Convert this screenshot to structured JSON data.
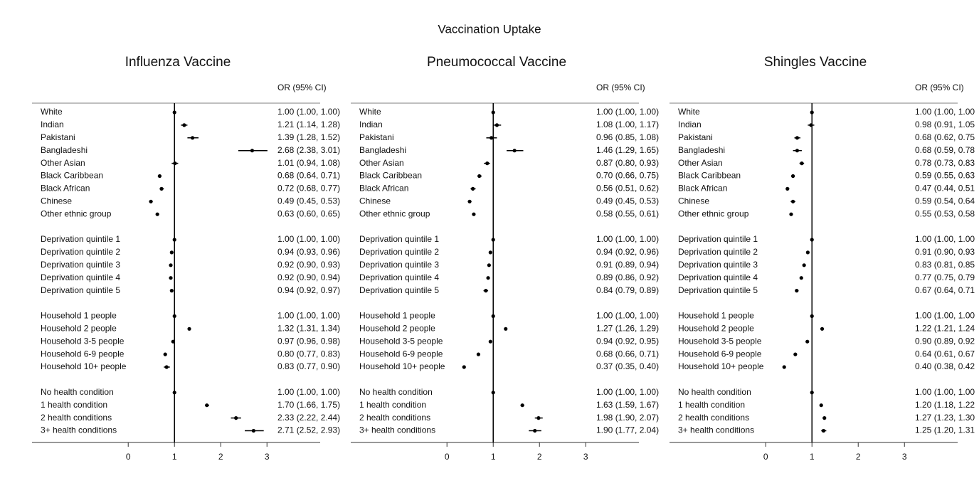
{
  "title": "Vaccination Uptake",
  "chart_data": [
    {
      "type": "forest",
      "title": "Influenza Vaccine",
      "column_header": "OR (95% CI)",
      "categories": [
        "White",
        "Indian",
        "Pakistani",
        "Bangladeshi",
        "Other Asian",
        "Black Caribbean",
        "Black African",
        "Chinese",
        "Other ethnic group",
        null,
        "Deprivation quintile 1",
        "Deprivation quintile 2",
        "Deprivation quintile 3",
        "Deprivation quintile 4",
        "Deprivation quintile 5",
        null,
        "Household 1 people",
        "Household 2 people",
        "Household 3-5 people",
        "Household 6-9 people",
        "Household 10+ people",
        null,
        "No health condition",
        "1 health condition",
        "2 health conditions",
        "3+ health conditions"
      ],
      "values": [
        1.0,
        1.21,
        1.39,
        2.68,
        1.01,
        0.68,
        0.72,
        0.49,
        0.63,
        null,
        1.0,
        0.94,
        0.92,
        0.92,
        0.94,
        null,
        1.0,
        1.32,
        0.97,
        0.8,
        0.83,
        null,
        1.0,
        1.7,
        2.33,
        2.71
      ],
      "lower": [
        1.0,
        1.14,
        1.28,
        2.38,
        0.94,
        0.64,
        0.68,
        0.45,
        0.6,
        null,
        1.0,
        0.93,
        0.9,
        0.9,
        0.92,
        null,
        1.0,
        1.31,
        0.96,
        0.77,
        0.77,
        null,
        1.0,
        1.66,
        2.22,
        2.52
      ],
      "upper": [
        1.0,
        1.28,
        1.52,
        3.01,
        1.08,
        0.71,
        0.77,
        0.53,
        0.65,
        null,
        1.0,
        0.96,
        0.93,
        0.94,
        0.97,
        null,
        1.0,
        1.34,
        0.98,
        0.83,
        0.9,
        null,
        1.0,
        1.75,
        2.44,
        2.93
      ],
      "value_labels": [
        "1.00 (1.00, 1.00)",
        "1.21 (1.14, 1.28)",
        "1.39 (1.28, 1.52)",
        "2.68 (2.38, 3.01)",
        "1.01 (0.94, 1.08)",
        "0.68 (0.64, 0.71)",
        "0.72 (0.68, 0.77)",
        "0.49 (0.45, 0.53)",
        "0.63 (0.60, 0.65)",
        null,
        "1.00 (1.00, 1.00)",
        "0.94 (0.93, 0.96)",
        "0.92 (0.90, 0.93)",
        "0.92 (0.90, 0.94)",
        "0.94 (0.92, 0.97)",
        null,
        "1.00 (1.00, 1.00)",
        "1.32 (1.31, 1.34)",
        "0.97 (0.96, 0.98)",
        "0.80 (0.77, 0.83)",
        "0.83 (0.77, 0.90)",
        null,
        "1.00 (1.00, 1.00)",
        "1.70 (1.66, 1.75)",
        "2.33 (2.22, 2.44)",
        "2.71 (2.52, 2.93)"
      ],
      "xlim": [
        -2.08,
        4.15
      ],
      "xticks": [
        0,
        1,
        2,
        3
      ],
      "refline": 1,
      "color": "#000000"
    },
    {
      "type": "forest",
      "title": "Pneumococcal Vaccine",
      "column_header": "OR (95% CI)",
      "categories": [
        "White",
        "Indian",
        "Pakistani",
        "Bangladeshi",
        "Other Asian",
        "Black Caribbean",
        "Black African",
        "Chinese",
        "Other ethnic group",
        null,
        "Deprivation quintile 1",
        "Deprivation quintile 2",
        "Deprivation quintile 3",
        "Deprivation quintile 4",
        "Deprivation quintile 5",
        null,
        "Household 1 people",
        "Household 2 people",
        "Household 3-5 people",
        "Household 6-9 people",
        "Household 10+ people",
        null,
        "No health condition",
        "1 health condition",
        "2 health conditions",
        "3+ health conditions"
      ],
      "values": [
        1.0,
        1.08,
        0.96,
        1.46,
        0.87,
        0.7,
        0.56,
        0.49,
        0.58,
        null,
        1.0,
        0.94,
        0.91,
        0.89,
        0.84,
        null,
        1.0,
        1.27,
        0.94,
        0.68,
        0.37,
        null,
        1.0,
        1.63,
        1.98,
        1.9
      ],
      "lower": [
        1.0,
        1.0,
        0.85,
        1.29,
        0.8,
        0.66,
        0.51,
        0.45,
        0.55,
        null,
        1.0,
        0.92,
        0.89,
        0.86,
        0.79,
        null,
        1.0,
        1.26,
        0.92,
        0.66,
        0.35,
        null,
        1.0,
        1.59,
        1.9,
        1.77
      ],
      "upper": [
        1.0,
        1.17,
        1.08,
        1.65,
        0.93,
        0.75,
        0.62,
        0.53,
        0.61,
        null,
        1.0,
        0.96,
        0.94,
        0.92,
        0.89,
        null,
        1.0,
        1.29,
        0.95,
        0.71,
        0.4,
        null,
        1.0,
        1.67,
        2.07,
        2.04
      ],
      "value_labels": [
        "1.00 (1.00, 1.00)",
        "1.08 (1.00, 1.17)",
        "0.96 (0.85, 1.08)",
        "1.46 (1.29, 1.65)",
        "0.87 (0.80, 0.93)",
        "0.70 (0.66, 0.75)",
        "0.56 (0.51, 0.62)",
        "0.49 (0.45, 0.53)",
        "0.58 (0.55, 0.61)",
        null,
        "1.00 (1.00, 1.00)",
        "0.94 (0.92, 0.96)",
        "0.91 (0.89, 0.94)",
        "0.89 (0.86, 0.92)",
        "0.84 (0.79, 0.89)",
        null,
        "1.00 (1.00, 1.00)",
        "1.27 (1.26, 1.29)",
        "0.94 (0.92, 0.95)",
        "0.68 (0.66, 0.71)",
        "0.37 (0.35, 0.40)",
        null,
        "1.00 (1.00, 1.00)",
        "1.63 (1.59, 1.67)",
        "1.98 (1.90, 2.07)",
        "1.90 (1.77, 2.04)"
      ],
      "xlim": [
        -2.08,
        4.15
      ],
      "xticks": [
        0,
        1,
        2,
        3
      ],
      "refline": 1,
      "color": "#000000"
    },
    {
      "type": "forest",
      "title": "Shingles Vaccine",
      "column_header": "OR (95% CI)",
      "categories": [
        "White",
        "Indian",
        "Pakistani",
        "Bangladeshi",
        "Other Asian",
        "Black Caribbean",
        "Black African",
        "Chinese",
        "Other ethnic group",
        null,
        "Deprivation quintile 1",
        "Deprivation quintile 2",
        "Deprivation quintile 3",
        "Deprivation quintile 4",
        "Deprivation quintile 5",
        null,
        "Household 1 people",
        "Household 2 people",
        "Household 3-5 people",
        "Household 6-9 people",
        "Household 10+ people",
        null,
        "No health condition",
        "1 health condition",
        "2 health conditions",
        "3+ health conditions"
      ],
      "values": [
        1.0,
        0.98,
        0.68,
        0.68,
        0.78,
        0.59,
        0.47,
        0.59,
        0.55,
        null,
        1.0,
        0.91,
        0.83,
        0.77,
        0.67,
        null,
        1.0,
        1.22,
        0.9,
        0.64,
        0.4,
        null,
        1.0,
        1.2,
        1.27,
        1.25
      ],
      "lower": [
        1.0,
        0.91,
        0.62,
        0.59,
        0.73,
        0.55,
        0.44,
        0.54,
        0.53,
        null,
        1.0,
        0.9,
        0.81,
        0.75,
        0.64,
        null,
        1.0,
        1.21,
        0.89,
        0.61,
        0.38,
        null,
        1.0,
        1.18,
        1.23,
        1.2
      ],
      "upper": [
        1.0,
        1.05,
        0.75,
        0.78,
        0.83,
        0.63,
        0.51,
        0.64,
        0.58,
        null,
        1.0,
        0.93,
        0.85,
        0.79,
        0.71,
        null,
        1.0,
        1.24,
        0.92,
        0.67,
        0.42,
        null,
        1.0,
        1.22,
        1.3,
        1.31
      ],
      "value_labels": [
        "1.00 (1.00, 1.00",
        "0.98 (0.91, 1.05",
        "0.68 (0.62, 0.75",
        "0.68 (0.59, 0.78",
        "0.78 (0.73, 0.83",
        "0.59 (0.55, 0.63",
        "0.47 (0.44, 0.51",
        "0.59 (0.54, 0.64",
        "0.55 (0.53, 0.58",
        null,
        "1.00 (1.00, 1.00",
        "0.91 (0.90, 0.93",
        "0.83 (0.81, 0.85",
        "0.77 (0.75, 0.79",
        "0.67 (0.64, 0.71",
        null,
        "1.00 (1.00, 1.00",
        "1.22 (1.21, 1.24",
        "0.90 (0.89, 0.92",
        "0.64 (0.61, 0.67",
        "0.40 (0.38, 0.42",
        null,
        "1.00 (1.00, 1.00",
        "1.20 (1.18, 1.22",
        "1.27 (1.23, 1.30",
        "1.25 (1.20, 1.31"
      ],
      "xlim": [
        -2.08,
        4.15
      ],
      "xticks": [
        0,
        1,
        2,
        3
      ],
      "refline": 1,
      "color": "#000000"
    }
  ]
}
